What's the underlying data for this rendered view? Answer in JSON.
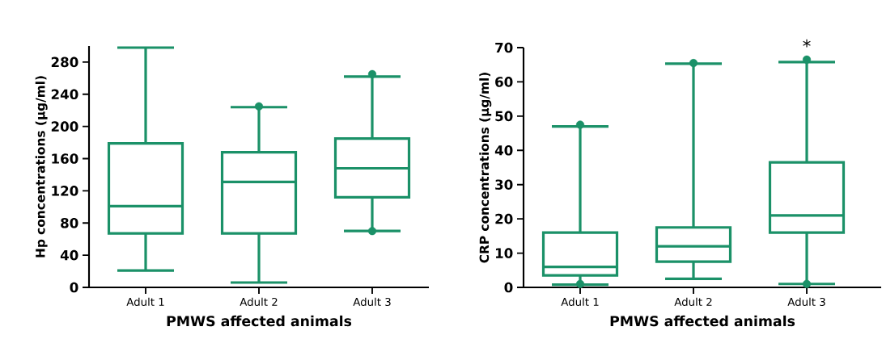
{
  "chart_data": [
    {
      "type": "box",
      "categories": [
        "Adult 1",
        "Adult 2",
        "Adult 3"
      ],
      "color": "#1b9168",
      "xlabel": "PMWS affected animals",
      "ylabel": "Hp concentrations (μg/ml)",
      "ylim": [
        0,
        300
      ],
      "yticks": [
        0,
        40,
        80,
        120,
        160,
        200,
        240,
        280
      ],
      "boxes": [
        {
          "low": 21,
          "q1": 67,
          "median": 101,
          "q3": 179,
          "high": 298
        },
        {
          "low": 6,
          "q1": 67,
          "median": 131,
          "q3": 168,
          "high": 224,
          "outliers": [
            225
          ]
        },
        {
          "low": 70,
          "q1": 112,
          "median": 148,
          "q3": 185,
          "high": 262,
          "outliers": [
            70,
            265
          ]
        }
      ]
    },
    {
      "type": "box",
      "categories": [
        "Adult 1",
        "Adult 2",
        "Adult 3"
      ],
      "color": "#1b9168",
      "xlabel": "PMWS affected animals",
      "ylabel": "CRP concentrations (μg/ml)",
      "ylim": [
        0,
        70
      ],
      "yticks": [
        0,
        10,
        20,
        30,
        40,
        50,
        60,
        70
      ],
      "boxes": [
        {
          "low": 0.8,
          "q1": 3.5,
          "median": 6,
          "q3": 16,
          "high": 47,
          "outliers": [
            1,
            47.5
          ]
        },
        {
          "low": 2.5,
          "q1": 7.5,
          "median": 12,
          "q3": 17.5,
          "high": 65.3,
          "outliers": [
            65.5
          ]
        },
        {
          "low": 1,
          "q1": 16,
          "median": 21,
          "q3": 36.5,
          "high": 65.8,
          "outliers": [
            1,
            66.5
          ]
        }
      ],
      "annotations": [
        "*"
      ]
    }
  ]
}
